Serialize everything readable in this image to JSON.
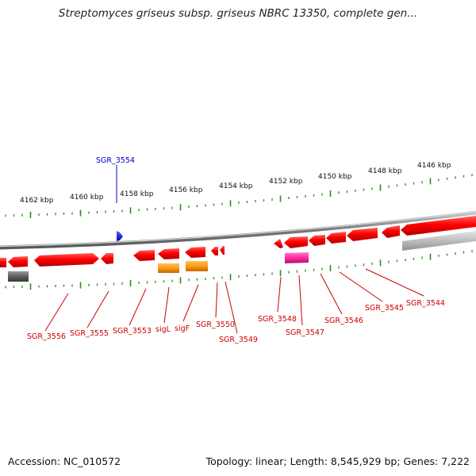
{
  "title": "Streptomyces griseus subsp. griseus NBRC 13350, complete gen...",
  "footer": {
    "accession": "Accession: NC_010572",
    "summary": "Topology: linear; Length: 8,545,929 bp; Genes: 7,222"
  },
  "colors": {
    "backbone": "#8a8a8a",
    "tick": "#2e8b1e",
    "forward_gene": "#ff1010",
    "reverse_gene": "#ff1010",
    "gene_label": "#cc0000",
    "highlight_label": "#0000cc",
    "highlight_gene": "#1010ff",
    "rna_orange": "#ff9a10",
    "pseudo_magenta": "#ff2aa0",
    "gray_feature": "#b8b8b8",
    "dark_gray_feature": "#666666"
  },
  "scale_labels": [
    "4162 kbp",
    "4160 kbp",
    "4158 kbp",
    "4156 kbp",
    "4154 kbp",
    "4152 kbp",
    "4150 kbp",
    "4148 kbp",
    "4146 kbp"
  ],
  "highlight_gene": "SGR_3554",
  "gene_labels": [
    "SGR_3556",
    "SGR_3555",
    "SGR_3553",
    "sigL",
    "sigF",
    "SGR_3550",
    "SGR_3549",
    "SGR_3548",
    "SGR_3547",
    "SGR_3546",
    "SGR_3545",
    "SGR_3544"
  ]
}
